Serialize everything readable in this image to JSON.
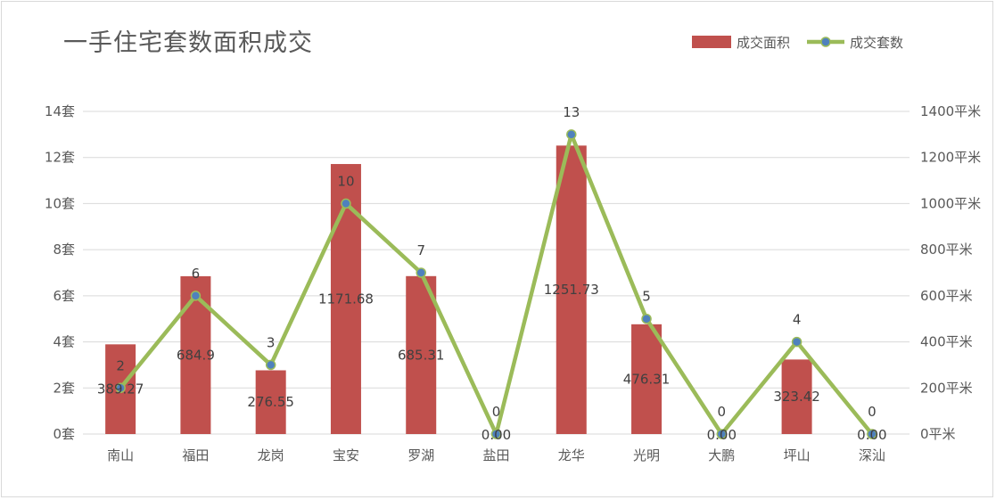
{
  "chart_data": {
    "type": "bar+line",
    "title": "一手住宅套数面积成交",
    "categories": [
      "南山",
      "福田",
      "龙岗",
      "宝安",
      "罗湖",
      "盐田",
      "龙华",
      "光明",
      "大鹏",
      "坪山",
      "深汕"
    ],
    "series": [
      {
        "name": "成交面积",
        "type": "bar",
        "axis": "right",
        "color": "#c0504d",
        "values": [
          389.27,
          684.9,
          276.55,
          1171.68,
          685.31,
          0,
          1251.73,
          476.31,
          0,
          323.42,
          0
        ],
        "labels": [
          "389.27",
          "684.9",
          "276.55",
          "1171.68",
          "685.31",
          "0.00",
          "1251.73",
          "476.31",
          "0.00",
          "323.42",
          "0.00"
        ]
      },
      {
        "name": "成交套数",
        "type": "line",
        "axis": "left",
        "color": "#9bbb59",
        "marker_color": "#4f81bd",
        "values": [
          2,
          6,
          3,
          10,
          7,
          0,
          13,
          5,
          0,
          4,
          0
        ],
        "labels": [
          "2",
          "6",
          "3",
          "10",
          "7",
          "0",
          "13",
          "5",
          "0",
          "4",
          "0"
        ]
      }
    ],
    "y_left": {
      "range": [
        0,
        14
      ],
      "ticks": [
        "0套",
        "2套",
        "4套",
        "6套",
        "8套",
        "10套",
        "12套",
        "14套"
      ]
    },
    "y_right": {
      "range": [
        0,
        1400
      ],
      "ticks": [
        "0平米",
        "200平米",
        "400平米",
        "600平米",
        "800平米",
        "1000平米",
        "1200平米",
        "1400平米"
      ]
    },
    "grid": true,
    "legend_position": "top-right"
  }
}
